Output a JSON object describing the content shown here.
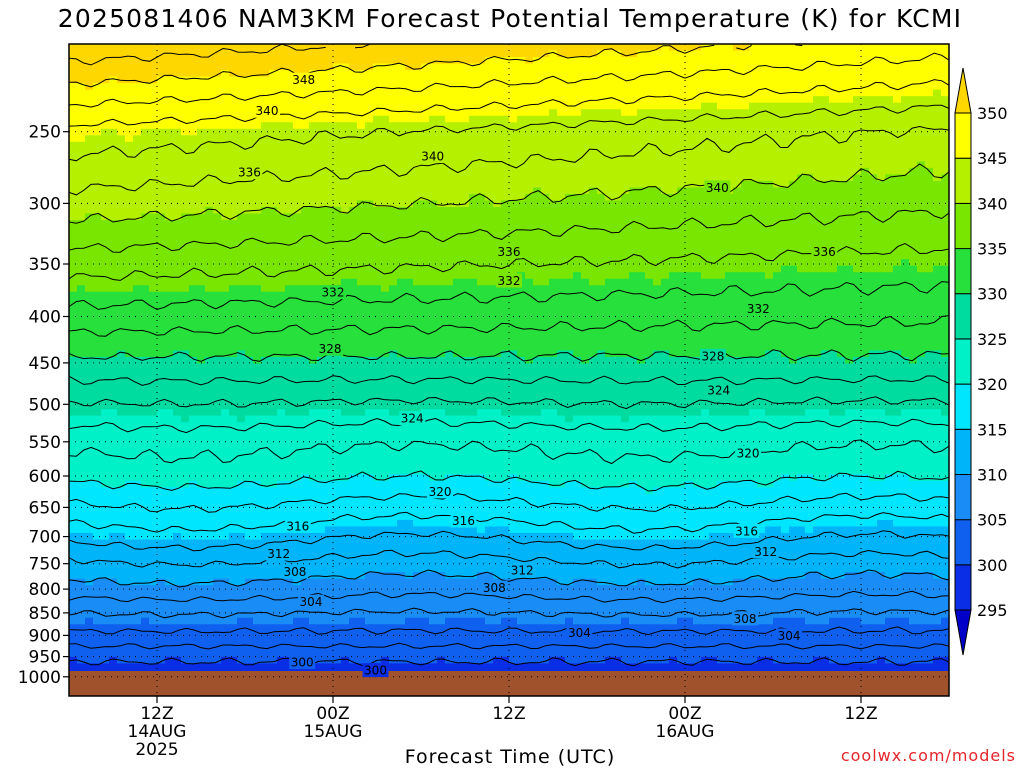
{
  "title": "2025081406 NAM3KM Forecast Potential Temperature (K) for KCMI",
  "credit": "coolwx.com/models",
  "chart_data": {
    "type": "heatmap",
    "title": "2025081406 NAM3KM Forecast Potential Temperature (K) for KCMI",
    "xlabel": "Forecast Time (UTC)",
    "ylabel": "",
    "y_axis": {
      "scale": "log",
      "reversed": true,
      "ticks": [
        250,
        300,
        350,
        400,
        450,
        500,
        550,
        600,
        650,
        700,
        750,
        800,
        850,
        900,
        950,
        1000
      ]
    },
    "x_ticks": [
      {
        "hour": 6,
        "label": "12Z",
        "sub1": "14AUG",
        "sub2": "2025"
      },
      {
        "hour": 18,
        "label": "00Z",
        "sub1": "15AUG",
        "sub2": ""
      },
      {
        "hour": 30,
        "label": "12Z",
        "sub1": "",
        "sub2": ""
      },
      {
        "hour": 42,
        "label": "00Z",
        "sub1": "16AUG",
        "sub2": ""
      },
      {
        "hour": 54,
        "label": "12Z",
        "sub1": "",
        "sub2": ""
      }
    ],
    "colorbar": {
      "levels": [
        295,
        300,
        305,
        310,
        315,
        320,
        325,
        330,
        335,
        340,
        345,
        350
      ],
      "colors": [
        "#0000c8",
        "#0a2ee6",
        "#1060f0",
        "#1a8cf5",
        "#00b4fa",
        "#00e6ff",
        "#00f0c8",
        "#00dca0",
        "#28e03c",
        "#78e600",
        "#b4f000",
        "#ffff00",
        "#ffd700"
      ]
    },
    "grid": true,
    "contour_labels": [
      {
        "value": "348",
        "hour": 16,
        "p": 219
      },
      {
        "value": "340",
        "hour": 13.5,
        "p": 237
      },
      {
        "value": "336",
        "hour": 12.3,
        "p": 277
      },
      {
        "value": "340",
        "hour": 24.8,
        "p": 266
      },
      {
        "value": "340",
        "hour": 44.2,
        "p": 288
      },
      {
        "value": "336",
        "hour": 30,
        "p": 339
      },
      {
        "value": "336",
        "hour": 51.5,
        "p": 339
      },
      {
        "value": "332",
        "hour": 18,
        "p": 376
      },
      {
        "value": "332",
        "hour": 30,
        "p": 365
      },
      {
        "value": "332",
        "hour": 47,
        "p": 392
      },
      {
        "value": "328",
        "hour": 17.8,
        "p": 434
      },
      {
        "value": "328",
        "hour": 43.9,
        "p": 442
      },
      {
        "value": "324",
        "hour": 23.4,
        "p": 518
      },
      {
        "value": "324",
        "hour": 44.3,
        "p": 482
      },
      {
        "value": "320",
        "hour": 25.3,
        "p": 624
      },
      {
        "value": "320",
        "hour": 46.3,
        "p": 566
      },
      {
        "value": "316",
        "hour": 15.6,
        "p": 681
      },
      {
        "value": "316",
        "hour": 26.9,
        "p": 672
      },
      {
        "value": "316",
        "hour": 46.2,
        "p": 690
      },
      {
        "value": "312",
        "hour": 14.3,
        "p": 731
      },
      {
        "value": "312",
        "hour": 30.9,
        "p": 762
      },
      {
        "value": "312",
        "hour": 47.5,
        "p": 727
      },
      {
        "value": "308",
        "hour": 15.4,
        "p": 765
      },
      {
        "value": "308",
        "hour": 29,
        "p": 797
      },
      {
        "value": "308",
        "hour": 46.1,
        "p": 862
      },
      {
        "value": "304",
        "hour": 16.5,
        "p": 826
      },
      {
        "value": "304",
        "hour": 34.8,
        "p": 893
      },
      {
        "value": "304",
        "hour": 49.1,
        "p": 900
      },
      {
        "value": "300",
        "hour": 15.9,
        "p": 963
      },
      {
        "value": "300",
        "hour": 20.9,
        "p": 983
      }
    ]
  }
}
